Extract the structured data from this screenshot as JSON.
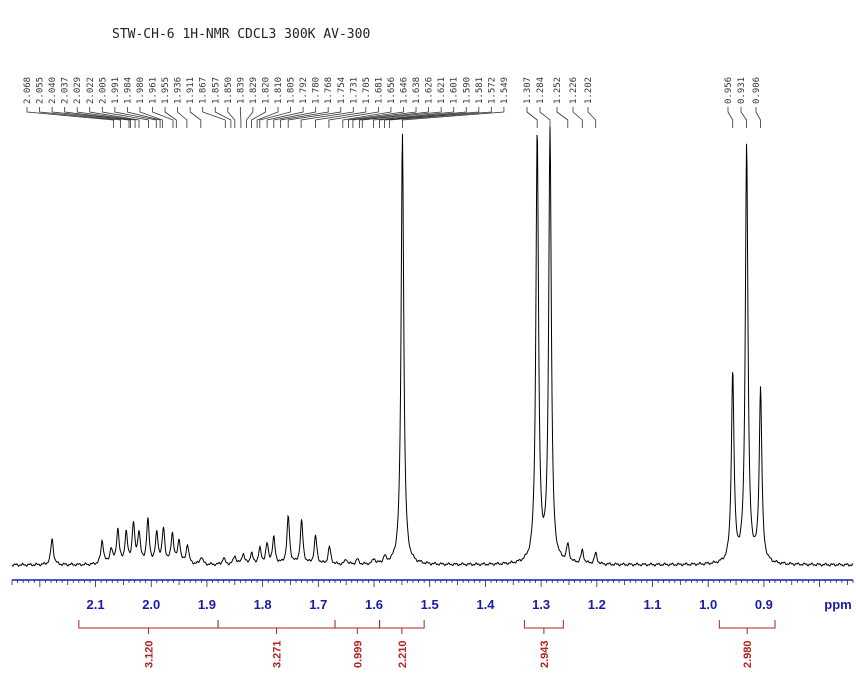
{
  "chart_data": {
    "type": "line",
    "title": "STW-CH-6 1H-NMR CDCL3 300K AV-300",
    "xlabel": "ppm",
    "xlim": [
      2.25,
      0.74
    ],
    "x_reversed": true,
    "ylabel": "",
    "x_ticks": [
      "2.1",
      "2.0",
      "1.9",
      "1.8",
      "1.7",
      "1.6",
      "1.5",
      "1.4",
      "1.3",
      "1.2",
      "1.1",
      "1.0",
      "0.9"
    ],
    "peak_labels": [
      "2.068",
      "2.055",
      "2.040",
      "2.037",
      "2.029",
      "2.022",
      "2.005",
      "1.991",
      "1.984",
      "1.980",
      "1.961",
      "1.955",
      "1.936",
      "1.911",
      "1.867",
      "1.857",
      "1.850",
      "1.839",
      "1.829",
      "1.820",
      "1.810",
      "1.805",
      "1.792",
      "1.780",
      "1.768",
      "1.754",
      "1.731",
      "1.705",
      "1.681",
      "1.656",
      "1.646",
      "1.638",
      "1.626",
      "1.621",
      "1.601",
      "1.590",
      "1.581",
      "1.572",
      "1.549",
      "1.307",
      "1.284",
      "1.252",
      "1.226",
      "1.202",
      "0.956",
      "0.931",
      "0.906"
    ],
    "peaks": [
      {
        "ppm": 2.178,
        "height": 0.06
      },
      {
        "ppm": 2.088,
        "height": 0.055
      },
      {
        "ppm": 2.072,
        "height": 0.035
      },
      {
        "ppm": 2.06,
        "height": 0.08
      },
      {
        "ppm": 2.045,
        "height": 0.07
      },
      {
        "ppm": 2.032,
        "height": 0.09
      },
      {
        "ppm": 2.022,
        "height": 0.07
      },
      {
        "ppm": 2.006,
        "height": 0.1
      },
      {
        "ppm": 1.99,
        "height": 0.07
      },
      {
        "ppm": 1.978,
        "height": 0.08
      },
      {
        "ppm": 1.962,
        "height": 0.07
      },
      {
        "ppm": 1.95,
        "height": 0.055
      },
      {
        "ppm": 1.935,
        "height": 0.045
      },
      {
        "ppm": 1.91,
        "height": 0.018
      },
      {
        "ppm": 1.87,
        "height": 0.015
      },
      {
        "ppm": 1.85,
        "height": 0.02
      },
      {
        "ppm": 1.835,
        "height": 0.025
      },
      {
        "ppm": 1.82,
        "height": 0.025
      },
      {
        "ppm": 1.805,
        "height": 0.035
      },
      {
        "ppm": 1.792,
        "height": 0.045
      },
      {
        "ppm": 1.78,
        "height": 0.06
      },
      {
        "ppm": 1.754,
        "height": 0.11
      },
      {
        "ppm": 1.73,
        "height": 0.1
      },
      {
        "ppm": 1.705,
        "height": 0.065
      },
      {
        "ppm": 1.68,
        "height": 0.04
      },
      {
        "ppm": 1.65,
        "height": 0.012
      },
      {
        "ppm": 1.63,
        "height": 0.012
      },
      {
        "ppm": 1.6,
        "height": 0.012
      },
      {
        "ppm": 1.581,
        "height": 0.015
      },
      {
        "ppm": 1.549,
        "height": 1.0
      },
      {
        "ppm": 1.307,
        "height": 1.0
      },
      {
        "ppm": 1.284,
        "height": 1.0
      },
      {
        "ppm": 1.252,
        "height": 0.04
      },
      {
        "ppm": 1.226,
        "height": 0.03
      },
      {
        "ppm": 1.202,
        "height": 0.025
      },
      {
        "ppm": 0.956,
        "height": 0.44
      },
      {
        "ppm": 0.931,
        "height": 0.97
      },
      {
        "ppm": 0.906,
        "height": 0.4
      }
    ],
    "integrals": [
      {
        "from": 2.13,
        "to": 1.88,
        "value": "3.120"
      },
      {
        "from": 1.88,
        "to": 1.67,
        "value": "3.271"
      },
      {
        "from": 1.67,
        "to": 1.59,
        "value": "0.999"
      },
      {
        "from": 1.59,
        "to": 1.51,
        "value": "2.210"
      },
      {
        "from": 1.33,
        "to": 1.26,
        "value": "2.943"
      },
      {
        "from": 0.98,
        "to": 0.88,
        "value": "2.980"
      }
    ],
    "colors": {
      "spectrum": "#000000",
      "axis": "#1a1aa8",
      "integral": "#b22222"
    }
  }
}
